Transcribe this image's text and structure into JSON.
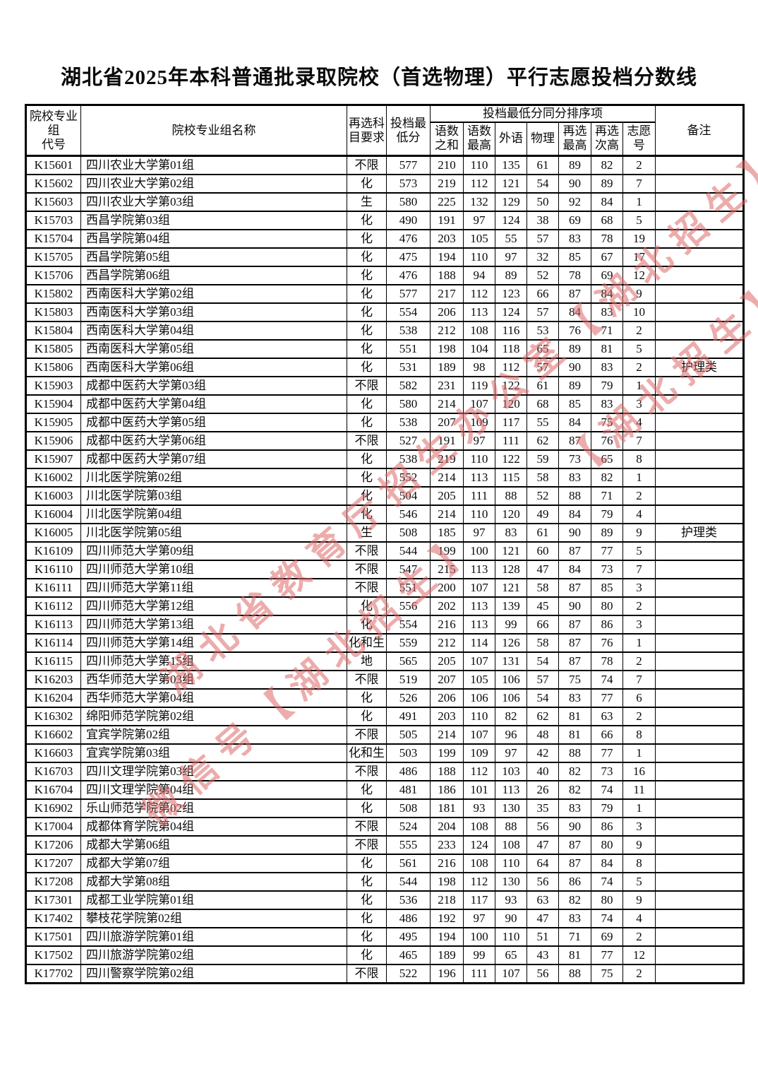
{
  "page": {
    "title": "湖北省2025年本科普通批录取院校（首选物理）平行志愿投档分数线"
  },
  "watermark": {
    "color": "#dd6a6a",
    "lines": [
      "湖北省教育厅招生办公室【湖北招生】",
      "微信号【湖北招生】",
      "【湖北招生】"
    ]
  },
  "table": {
    "header": {
      "code": "院校专业\n组\n代号",
      "name": "院校专业组名称",
      "req": "再选科\n目要求",
      "min": "投档最\n低分",
      "group": "投档最低分同分排序项",
      "ties": [
        "语数\n之和",
        "语数\n最高",
        "外语",
        "物理",
        "再选\n最高",
        "再选\n次高",
        "志愿\n号"
      ],
      "remark": "备注"
    },
    "rows": [
      [
        "K15601",
        "四川农业大学第01组",
        "不限",
        577,
        210,
        110,
        135,
        61,
        89,
        82,
        2,
        ""
      ],
      [
        "K15602",
        "四川农业大学第02组",
        "化",
        573,
        219,
        112,
        121,
        54,
        90,
        89,
        7,
        ""
      ],
      [
        "K15603",
        "四川农业大学第03组",
        "生",
        580,
        225,
        132,
        129,
        50,
        92,
        84,
        1,
        ""
      ],
      [
        "K15703",
        "西昌学院第03组",
        "化",
        490,
        191,
        97,
        124,
        38,
        69,
        68,
        5,
        ""
      ],
      [
        "K15704",
        "西昌学院第04组",
        "化",
        476,
        203,
        105,
        55,
        57,
        83,
        78,
        19,
        ""
      ],
      [
        "K15705",
        "西昌学院第05组",
        "化",
        475,
        194,
        110,
        97,
        32,
        85,
        67,
        17,
        ""
      ],
      [
        "K15706",
        "西昌学院第06组",
        "化",
        476,
        188,
        94,
        89,
        52,
        78,
        69,
        12,
        ""
      ],
      [
        "K15802",
        "西南医科大学第02组",
        "化",
        577,
        217,
        112,
        123,
        66,
        87,
        84,
        9,
        ""
      ],
      [
        "K15803",
        "西南医科大学第03组",
        "化",
        554,
        206,
        113,
        124,
        57,
        84,
        83,
        10,
        ""
      ],
      [
        "K15804",
        "西南医科大学第04组",
        "化",
        538,
        212,
        108,
        116,
        53,
        76,
        71,
        2,
        ""
      ],
      [
        "K15805",
        "西南医科大学第05组",
        "化",
        551,
        198,
        104,
        118,
        65,
        89,
        81,
        5,
        ""
      ],
      [
        "K15806",
        "西南医科大学第06组",
        "化",
        531,
        189,
        98,
        112,
        57,
        90,
        83,
        2,
        "护理类"
      ],
      [
        "K15903",
        "成都中医药大学第03组",
        "不限",
        582,
        231,
        119,
        122,
        61,
        89,
        79,
        1,
        ""
      ],
      [
        "K15904",
        "成都中医药大学第04组",
        "化",
        580,
        214,
        107,
        120,
        68,
        85,
        83,
        3,
        ""
      ],
      [
        "K15905",
        "成都中医药大学第05组",
        "化",
        538,
        207,
        109,
        117,
        55,
        84,
        75,
        4,
        ""
      ],
      [
        "K15906",
        "成都中医药大学第06组",
        "不限",
        527,
        191,
        97,
        111,
        62,
        87,
        76,
        7,
        ""
      ],
      [
        "K15907",
        "成都中医药大学第07组",
        "化",
        538,
        219,
        110,
        122,
        59,
        73,
        65,
        8,
        ""
      ],
      [
        "K16002",
        "川北医学院第02组",
        "化",
        552,
        214,
        113,
        115,
        58,
        83,
        82,
        1,
        ""
      ],
      [
        "K16003",
        "川北医学院第03组",
        "化",
        504,
        205,
        111,
        88,
        52,
        88,
        71,
        2,
        ""
      ],
      [
        "K16004",
        "川北医学院第04组",
        "化",
        546,
        214,
        110,
        120,
        49,
        84,
        79,
        4,
        ""
      ],
      [
        "K16005",
        "川北医学院第05组",
        "生",
        508,
        185,
        97,
        83,
        61,
        90,
        89,
        9,
        "护理类"
      ],
      [
        "K16109",
        "四川师范大学第09组",
        "不限",
        544,
        199,
        100,
        121,
        60,
        87,
        77,
        5,
        ""
      ],
      [
        "K16110",
        "四川师范大学第10组",
        "不限",
        547,
        215,
        113,
        128,
        47,
        84,
        73,
        7,
        ""
      ],
      [
        "K16111",
        "四川师范大学第11组",
        "不限",
        551,
        200,
        107,
        121,
        58,
        87,
        85,
        3,
        ""
      ],
      [
        "K16112",
        "四川师范大学第12组",
        "化",
        556,
        202,
        113,
        139,
        45,
        90,
        80,
        2,
        ""
      ],
      [
        "K16113",
        "四川师范大学第13组",
        "化",
        554,
        216,
        113,
        99,
        66,
        87,
        86,
        3,
        ""
      ],
      [
        "K16114",
        "四川师范大学第14组",
        "化和生",
        559,
        212,
        114,
        126,
        58,
        87,
        76,
        1,
        ""
      ],
      [
        "K16115",
        "四川师范大学第15组",
        "地",
        565,
        205,
        107,
        131,
        54,
        87,
        78,
        2,
        ""
      ],
      [
        "K16203",
        "西华师范大学第03组",
        "不限",
        519,
        207,
        105,
        106,
        57,
        75,
        74,
        7,
        ""
      ],
      [
        "K16204",
        "西华师范大学第04组",
        "化",
        526,
        206,
        106,
        106,
        54,
        83,
        77,
        6,
        ""
      ],
      [
        "K16302",
        "绵阳师范学院第02组",
        "化",
        491,
        203,
        110,
        82,
        62,
        81,
        63,
        2,
        ""
      ],
      [
        "K16602",
        "宜宾学院第02组",
        "不限",
        505,
        214,
        107,
        96,
        48,
        81,
        66,
        8,
        ""
      ],
      [
        "K16603",
        "宜宾学院第03组",
        "化和生",
        503,
        199,
        109,
        97,
        42,
        88,
        77,
        1,
        ""
      ],
      [
        "K16703",
        "四川文理学院第03组",
        "不限",
        486,
        188,
        112,
        103,
        40,
        82,
        73,
        16,
        ""
      ],
      [
        "K16704",
        "四川文理学院第04组",
        "化",
        481,
        186,
        101,
        113,
        26,
        82,
        74,
        11,
        ""
      ],
      [
        "K16902",
        "乐山师范学院第02组",
        "化",
        508,
        181,
        93,
        130,
        35,
        83,
        79,
        1,
        ""
      ],
      [
        "K17004",
        "成都体育学院第04组",
        "不限",
        524,
        204,
        108,
        88,
        56,
        90,
        86,
        3,
        ""
      ],
      [
        "K17206",
        "成都大学第06组",
        "不限",
        555,
        233,
        124,
        108,
        47,
        87,
        80,
        9,
        ""
      ],
      [
        "K17207",
        "成都大学第07组",
        "化",
        561,
        216,
        108,
        110,
        64,
        87,
        84,
        8,
        ""
      ],
      [
        "K17208",
        "成都大学第08组",
        "化",
        544,
        198,
        112,
        130,
        56,
        86,
        74,
        5,
        ""
      ],
      [
        "K17301",
        "成都工业学院第01组",
        "化",
        536,
        218,
        117,
        93,
        63,
        82,
        80,
        9,
        ""
      ],
      [
        "K17402",
        "攀枝花学院第02组",
        "化",
        486,
        192,
        97,
        90,
        47,
        83,
        74,
        4,
        ""
      ],
      [
        "K17501",
        "四川旅游学院第01组",
        "化",
        495,
        194,
        100,
        110,
        51,
        71,
        69,
        2,
        ""
      ],
      [
        "K17502",
        "四川旅游学院第02组",
        "化",
        465,
        189,
        99,
        65,
        43,
        81,
        77,
        12,
        ""
      ],
      [
        "K17702",
        "四川警察学院第02组",
        "不限",
        522,
        196,
        111,
        107,
        56,
        88,
        75,
        2,
        ""
      ]
    ]
  }
}
